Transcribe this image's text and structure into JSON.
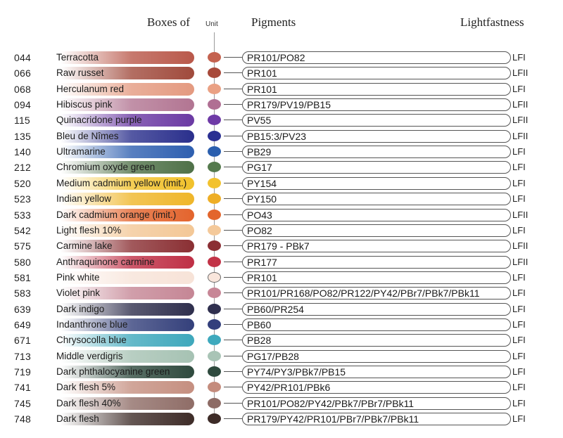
{
  "header": {
    "boxes_of": "Boxes of",
    "unit": "Unit",
    "pigments": "Pigments",
    "lightfastness": "Lightfastness"
  },
  "rows": [
    {
      "code": "044",
      "name": "Terracotta",
      "pigments": "PR101/PO82",
      "lf": "LFI",
      "color": "#b9584a",
      "dot": "#c4624f"
    },
    {
      "code": "066",
      "name": "Raw russet",
      "pigments": "PR101",
      "lf": "LFII",
      "color": "#a04a3c",
      "dot": "#a7493a"
    },
    {
      "code": "068",
      "name": "Herculanum red",
      "pigments": "PR101",
      "lf": "LFI",
      "color": "#e49a80",
      "dot": "#eaa184"
    },
    {
      "code": "094",
      "name": "Hibiscus pink",
      "pigments": "PR179/PV19/PB15",
      "lf": "LFII",
      "color": "#b27592",
      "dot": "#b06f93"
    },
    {
      "code": "115",
      "name": "Quinacridone purple",
      "pigments": "PV55",
      "lf": "LFII",
      "color": "#6b3aa3",
      "dot": "#6e3aa6"
    },
    {
      "code": "135",
      "name": "Bleu de Nîmes",
      "pigments": "PB15:3/PV23",
      "lf": "LFII",
      "color": "#2a2f8c",
      "dot": "#2a2f92"
    },
    {
      "code": "140",
      "name": "Ultramarine",
      "pigments": "PB29",
      "lf": "LFI",
      "color": "#2e5fb0",
      "dot": "#2b5fae"
    },
    {
      "code": "212",
      "name": "Chromium oxyde green",
      "pigments": "PG17",
      "lf": "LFI",
      "color": "#4f7148",
      "dot": "#557a4d"
    },
    {
      "code": "520",
      "name": "Medium cadmium yellow (imit.)",
      "pigments": "PY154",
      "lf": "LFI",
      "color": "#f1c12b",
      "dot": "#f2c22e"
    },
    {
      "code": "523",
      "name": "Indian yellow",
      "pigments": "PY150",
      "lf": "LFI",
      "color": "#efb62a",
      "dot": "#eeae26"
    },
    {
      "code": "533",
      "name": "Dark cadmium orange (imit.)",
      "pigments": "PO43",
      "lf": "LFII",
      "color": "#e3642d",
      "dot": "#e3652c"
    },
    {
      "code": "542",
      "name": "Light flesh 10%",
      "pigments": "PO82",
      "lf": "LFI",
      "color": "#f3c796",
      "dot": "#f4c99a"
    },
    {
      "code": "575",
      "name": "Carmine lake",
      "pigments": "PR179 - PBk7",
      "lf": "LFII",
      "color": "#8a2f33",
      "dot": "#8b2f34"
    },
    {
      "code": "580",
      "name": "Anthraquinone carmine",
      "pigments": "PR177",
      "lf": "LFII",
      "color": "#bf2f45",
      "dot": "#c23347"
    },
    {
      "code": "581",
      "name": "Pink white",
      "pigments": "PR101",
      "lf": "LFI",
      "color": "#f7e3d8",
      "dot": "#f9e6dc"
    },
    {
      "code": "583",
      "name": "Violet pink",
      "pigments": "PR101/PR168/PO82/PR122/PY42/PBr7/PBk7/PBk11",
      "lf": "LFI",
      "color": "#c58695",
      "dot": "#c78696"
    },
    {
      "code": "639",
      "name": "Dark indigo",
      "pigments": "PB60/PR254",
      "lf": "LFI",
      "color": "#2f2f4d",
      "dot": "#2f2f4e"
    },
    {
      "code": "649",
      "name": "Indanthrone blue",
      "pigments": "PB60",
      "lf": "LFI",
      "color": "#34407b",
      "dot": "#333f7c"
    },
    {
      "code": "671",
      "name": "Chrysocolla blue",
      "pigments": "PB28",
      "lf": "LFI",
      "color": "#3ea8bc",
      "dot": "#3ea9bd"
    },
    {
      "code": "713",
      "name": "Middle verdigris",
      "pigments": "PG17/PB28",
      "lf": "LFI",
      "color": "#a6c2b3",
      "dot": "#a9c4b6"
    },
    {
      "code": "719",
      "name": "Dark phthalocyanine green",
      "pigments": "PY74/PY3/PBk7/PB15",
      "lf": "LFI",
      "color": "#2f4a3e",
      "dot": "#2f4a3e"
    },
    {
      "code": "741",
      "name": "Dark flesh 5%",
      "pigments": "PY42/PR101/PBk6",
      "lf": "LFI",
      "color": "#c58f80",
      "dot": "#c48c7d"
    },
    {
      "code": "745",
      "name": "Dark flesh 40%",
      "pigments": "PR101/PO82/PY42/PBk7/PBr7/PBk11",
      "lf": "LFI",
      "color": "#8f6d67",
      "dot": "#8d6b65"
    },
    {
      "code": "748",
      "name": "Dark flesh",
      "pigments": "PR179/PY42/PR101/PBr7/PBk7/PBk11",
      "lf": "LFI",
      "color": "#3e2c28",
      "dot": "#3d2b27"
    }
  ]
}
